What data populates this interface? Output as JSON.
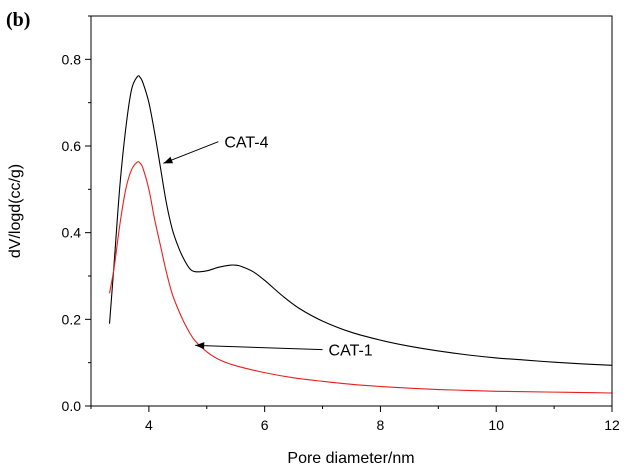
{
  "panel_label": "(b)",
  "chart_data": {
    "type": "line",
    "title": "",
    "xlabel": "Pore diameter/nm",
    "ylabel": "dV/logd(cc/g)",
    "xlim": [
      3.0,
      12.0
    ],
    "ylim": [
      0.0,
      0.9
    ],
    "xticks": [
      4,
      6,
      8,
      10,
      12
    ],
    "xtick_labels": [
      "4",
      "6",
      "8",
      "10",
      "12"
    ],
    "yticks": [
      0.0,
      0.2,
      0.4,
      0.6,
      0.8
    ],
    "ytick_labels": [
      "0.0",
      "0.2",
      "0.4",
      "0.6",
      "0.8"
    ],
    "grid": false,
    "legend": "none",
    "series": [
      {
        "name": "CAT-4",
        "color": "#000000",
        "x": [
          3.32,
          3.4,
          3.5,
          3.6,
          3.7,
          3.8,
          3.85,
          3.9,
          4.0,
          4.1,
          4.2,
          4.3,
          4.4,
          4.5,
          4.6,
          4.7,
          4.8,
          5.0,
          5.2,
          5.4,
          5.5,
          5.6,
          5.8,
          6.0,
          6.3,
          6.6,
          7.0,
          7.5,
          8.0,
          8.5,
          9.0,
          9.5,
          10.0,
          10.5,
          11.0,
          11.5,
          12.0
        ],
        "values": [
          0.19,
          0.33,
          0.51,
          0.64,
          0.73,
          0.76,
          0.758,
          0.745,
          0.7,
          0.63,
          0.55,
          0.47,
          0.41,
          0.37,
          0.34,
          0.318,
          0.31,
          0.312,
          0.32,
          0.325,
          0.325,
          0.322,
          0.31,
          0.29,
          0.255,
          0.225,
          0.196,
          0.17,
          0.152,
          0.138,
          0.127,
          0.118,
          0.111,
          0.106,
          0.101,
          0.097,
          0.094
        ]
      },
      {
        "name": "CAT-1",
        "color": "#e8201e",
        "x": [
          3.32,
          3.4,
          3.5,
          3.6,
          3.7,
          3.8,
          3.85,
          3.9,
          4.0,
          4.1,
          4.2,
          4.3,
          4.4,
          4.5,
          4.6,
          4.7,
          4.8,
          5.0,
          5.2,
          5.5,
          6.0,
          6.5,
          7.0,
          7.5,
          8.0,
          8.5,
          9.0,
          9.5,
          10.0,
          10.5,
          11.0,
          11.5,
          12.0
        ],
        "values": [
          0.26,
          0.32,
          0.42,
          0.5,
          0.545,
          0.563,
          0.56,
          0.548,
          0.5,
          0.43,
          0.37,
          0.31,
          0.26,
          0.225,
          0.195,
          0.17,
          0.15,
          0.125,
          0.108,
          0.093,
          0.077,
          0.065,
          0.057,
          0.05,
          0.045,
          0.041,
          0.038,
          0.036,
          0.034,
          0.033,
          0.032,
          0.031,
          0.03
        ]
      }
    ],
    "annotations": [
      {
        "text": "CAT-4",
        "target": [
          4.25,
          0.56
        ],
        "anchor": [
          5.2,
          0.61
        ]
      },
      {
        "text": "CAT-1",
        "target": [
          4.8,
          0.14
        ],
        "anchor": [
          7.0,
          0.13
        ]
      }
    ]
  }
}
